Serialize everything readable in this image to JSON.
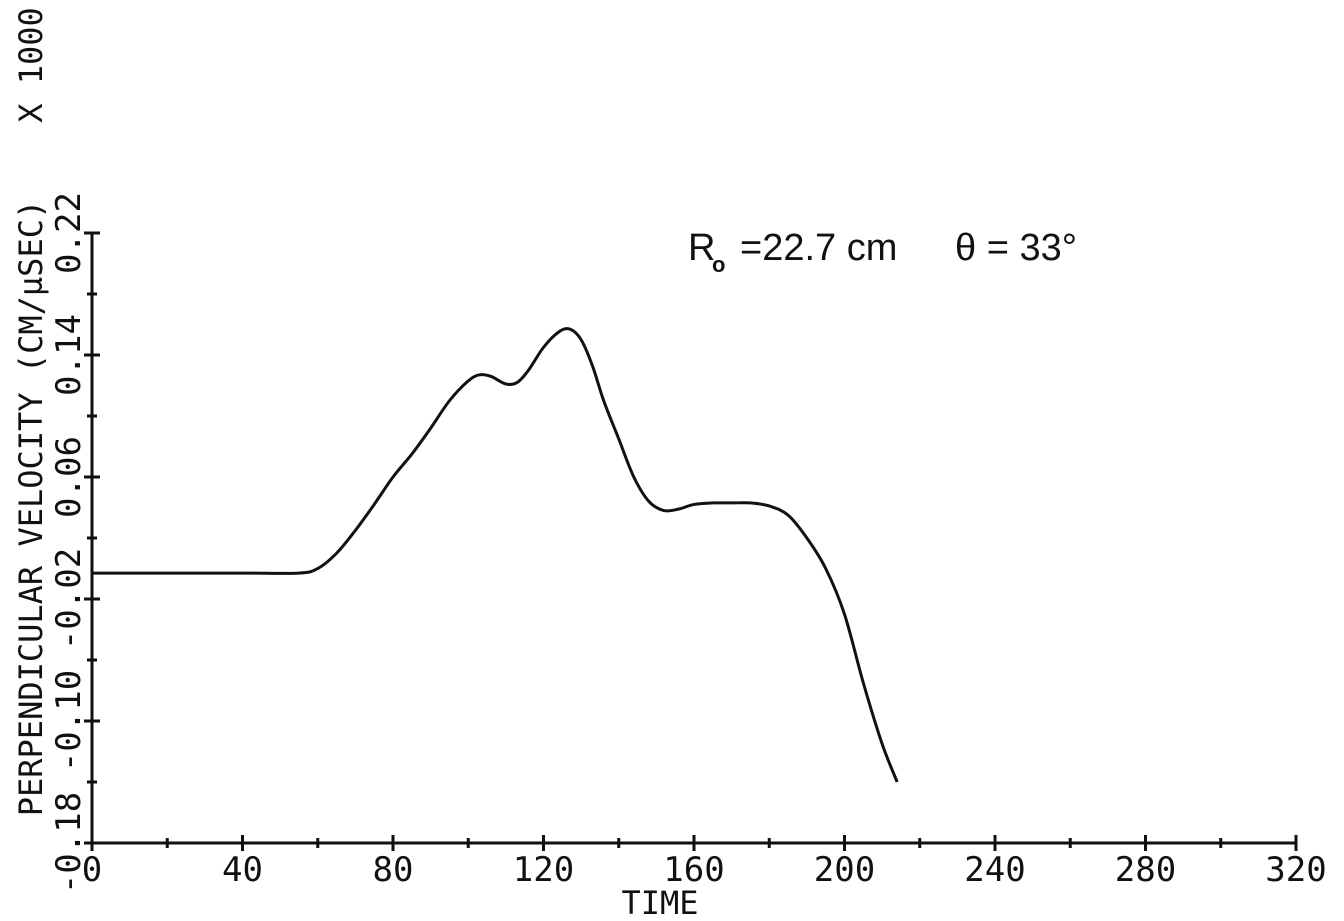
{
  "chart_data": {
    "type": "line",
    "title": "",
    "xlabel": "TIME",
    "ylabel": "PERPENDICULAR VELOCITY (CM/µSEC)",
    "y_multiplier_label": "X 1000",
    "xlim": [
      0,
      320
    ],
    "ylim": [
      -0.18,
      0.22
    ],
    "x_ticks": [
      0,
      40,
      80,
      120,
      160,
      200,
      240,
      280,
      320
    ],
    "x_tick_labels": [
      "0",
      "40",
      "80",
      "120",
      "160",
      "200",
      "240",
      "280",
      "320"
    ],
    "y_ticks": [
      -0.18,
      -0.1,
      -0.02,
      0.06,
      0.14,
      0.22
    ],
    "y_tick_labels": [
      "-0.18",
      "-0.10",
      "-0.02",
      "0.06",
      "0.14",
      "0.22"
    ],
    "grid": false,
    "annotation": {
      "r_symbol": "R",
      "r_subscript": "o",
      "r_value": "=22.7 cm",
      "theta_text": "θ = 33°"
    },
    "series": [
      {
        "x": [
          0,
          20,
          40,
          55,
          60,
          65,
          70,
          75,
          80,
          85,
          90,
          95,
          100,
          103,
          106,
          110,
          113,
          116,
          120,
          124,
          127,
          130,
          133,
          136,
          140,
          144,
          148,
          152,
          156,
          160,
          165,
          170,
          175,
          180,
          185,
          190,
          195,
          200,
          205,
          210,
          214
        ],
        "y": [
          -0.003,
          -0.003,
          -0.003,
          -0.003,
          0.0,
          0.01,
          0.025,
          0.042,
          0.06,
          0.075,
          0.092,
          0.11,
          0.123,
          0.127,
          0.126,
          0.121,
          0.122,
          0.13,
          0.145,
          0.155,
          0.157,
          0.15,
          0.133,
          0.11,
          0.085,
          0.06,
          0.044,
          0.038,
          0.039,
          0.042,
          0.043,
          0.043,
          0.043,
          0.041,
          0.035,
          0.02,
          0.0,
          -0.03,
          -0.075,
          -0.115,
          -0.14
        ]
      }
    ]
  }
}
